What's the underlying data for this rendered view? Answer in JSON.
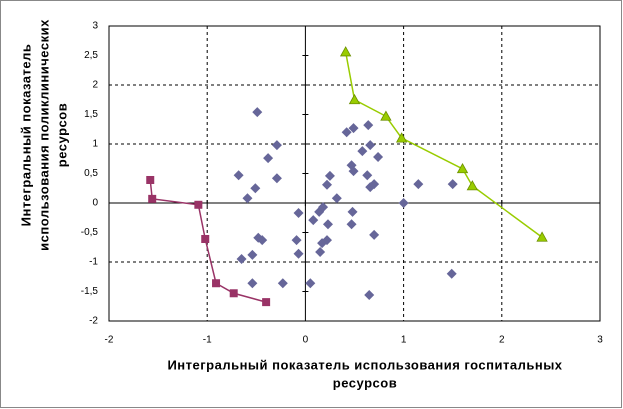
{
  "chart_data": {
    "type": "scatter",
    "xlabel": [
      "Интегральный показатель использования госпитальных",
      "ресурсов"
    ],
    "ylabel": [
      "Интегральный показатель",
      "использования поликлинических",
      "ресурсов"
    ],
    "xlim": [
      -2,
      3
    ],
    "xticks": [
      -2,
      -1,
      0,
      1,
      2,
      3
    ],
    "ylim": [
      -2,
      3
    ],
    "yticks": [
      -2,
      {
        "value": -1.5,
        "label": "-1,5"
      },
      -1,
      {
        "value": -0.5,
        "label": "-0,5"
      },
      0,
      {
        "value": 0.5,
        "label": "0,5"
      },
      1,
      {
        "value": 1.5,
        "label": "1,5"
      },
      2,
      {
        "value": 2.5,
        "label": "2,5"
      },
      3
    ],
    "grid": true,
    "series": [
      {
        "color": "#666699",
        "marker": "diamond",
        "line": false,
        "x": [
          -0.49,
          -0.29,
          -0.38,
          -0.68,
          -0.51,
          -0.29,
          -0.59,
          -0.07,
          0.08,
          0.14,
          0.18,
          0.22,
          0.25,
          0.32,
          -0.09,
          -0.07,
          0.05,
          0.15,
          0.17,
          0.22,
          0.23,
          -0.48,
          -0.44,
          -0.54,
          -0.65,
          -0.54,
          -0.23,
          0.42,
          0.49,
          0.47,
          0.49,
          0.58,
          0.64,
          0.66,
          0.63,
          0.66,
          0.7,
          0.74,
          0.48,
          0.47,
          0.7,
          0.65,
          1.0,
          1.15,
          1.5,
          1.49
        ],
        "values": [
          1.54,
          0.98,
          0.76,
          0.47,
          0.25,
          0.42,
          0.08,
          -0.17,
          -0.29,
          -0.15,
          -0.07,
          0.31,
          0.46,
          0.08,
          -0.63,
          -0.86,
          -1.36,
          -0.83,
          -0.68,
          -0.63,
          -0.36,
          -0.59,
          -0.63,
          -0.88,
          -0.95,
          -1.36,
          -1.36,
          1.2,
          1.27,
          0.64,
          0.54,
          0.88,
          1.32,
          0.98,
          0.47,
          0.27,
          0.32,
          0.78,
          -0.15,
          -0.36,
          -0.54,
          -1.56,
          0.0,
          0.32,
          0.32,
          -1.2
        ]
      },
      {
        "color": "#993366",
        "marker": "square",
        "line": true,
        "x": [
          -1.58,
          -1.56,
          -1.09,
          -1.02,
          -0.91,
          -0.73,
          -0.4
        ],
        "values": [
          0.39,
          0.07,
          -0.03,
          -0.61,
          -1.36,
          -1.53,
          -1.68
        ]
      },
      {
        "color": "#99cc00",
        "marker": "triangle",
        "line": true,
        "x": [
          0.41,
          0.5,
          0.82,
          0.98,
          1.6,
          1.7,
          2.41
        ],
        "values": [
          2.56,
          1.75,
          1.47,
          1.1,
          0.58,
          0.29,
          -0.58
        ]
      }
    ]
  }
}
